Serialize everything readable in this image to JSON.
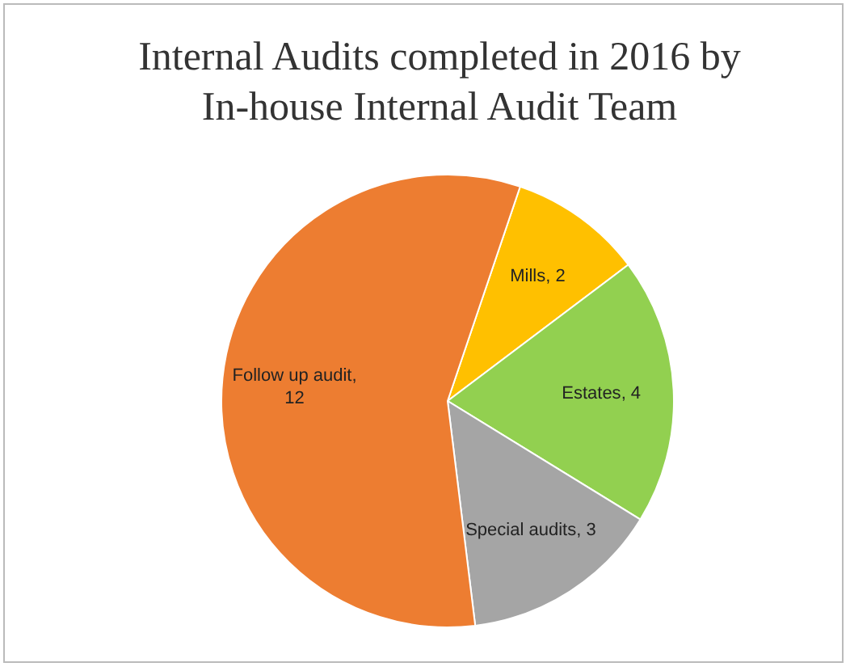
{
  "chart_data": {
    "type": "pie",
    "title": "Internal Audits completed in 2016 by In-house Internal Audit Team",
    "categories": [
      "Mills",
      "Estates",
      "Special audits",
      "Follow up audit"
    ],
    "values": [
      2,
      4,
      3,
      12
    ],
    "value_labels": [
      ", 2",
      ", 4",
      ", 3",
      ", 12"
    ],
    "colors": [
      "#ffc000",
      "#92d050",
      "#a5a5a5",
      "#ed7d31"
    ]
  }
}
